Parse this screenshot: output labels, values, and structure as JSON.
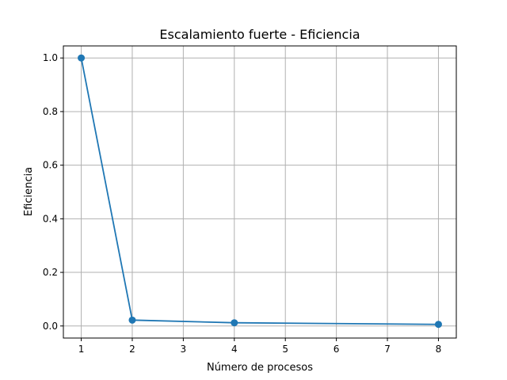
{
  "chart_data": {
    "type": "line",
    "title": "Escalamiento fuerte - Eficiencia",
    "xlabel": "Número de procesos",
    "ylabel": "Eficiencia",
    "x": [
      1,
      2,
      4,
      8
    ],
    "series": [
      {
        "values": [
          1.0,
          0.022,
          0.012,
          0.006
        ],
        "color": "#1f77b4",
        "marker": "circle"
      }
    ],
    "xlim": [
      0.65,
      8.35
    ],
    "ylim": [
      -0.045,
      1.045
    ],
    "xticks": [
      1,
      2,
      3,
      4,
      5,
      6,
      7,
      8
    ],
    "yticks": [
      0.0,
      0.2,
      0.4,
      0.6,
      0.8,
      1.0
    ],
    "ytick_labels": [
      "0.0",
      "0.2",
      "0.4",
      "0.6",
      "0.8",
      "1.0"
    ],
    "grid": true
  }
}
